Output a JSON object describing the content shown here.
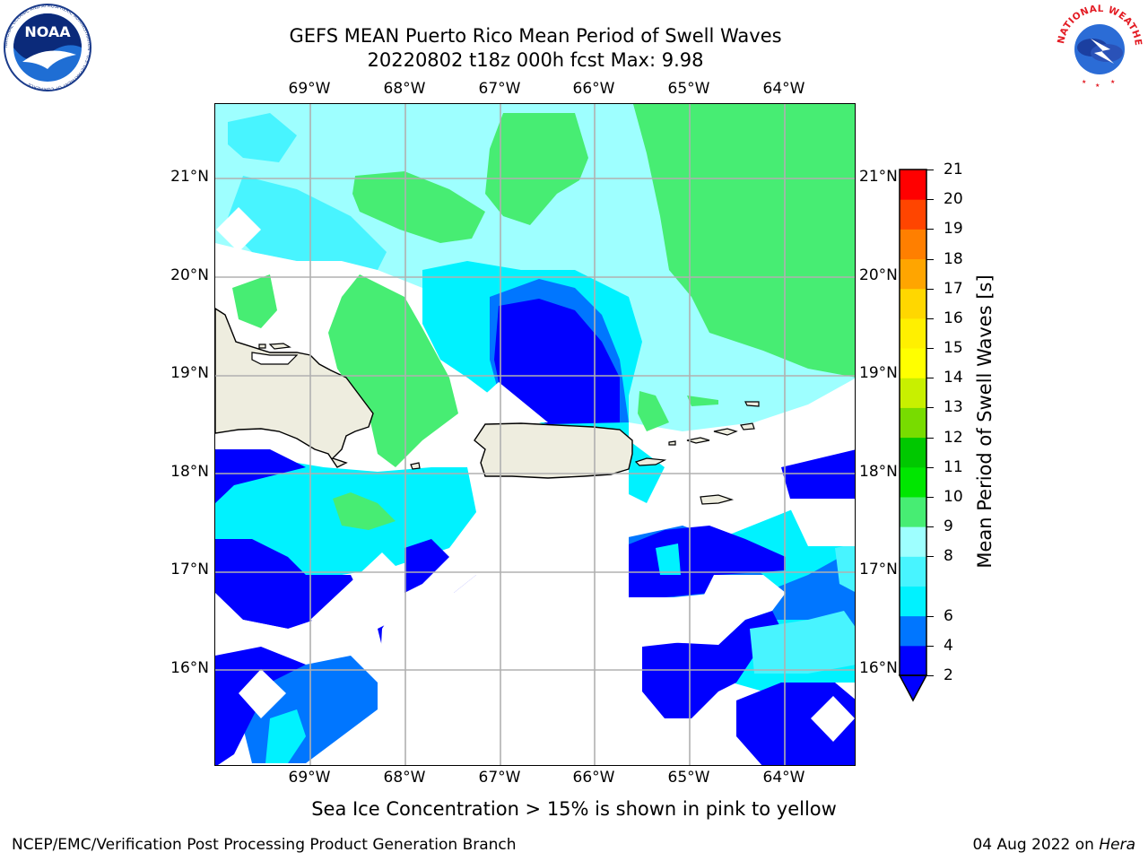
{
  "title": {
    "line1": "GEFS MEAN Puerto Rico Mean Period of Swell Waves",
    "line2": "20220802 t18z 000h fcst   Max: 9.98"
  },
  "logos": {
    "left": {
      "name": "noaa-logo",
      "text": "NOAA",
      "ring_text": "NATIONAL OCEANIC AND ATMOSPHERIC ADMINISTRATION · U.S. DEPARTMENT OF COMMERCE"
    },
    "right": {
      "name": "nws-logo",
      "ring_text": "NATIONAL WEATHER SERVICE"
    }
  },
  "map": {
    "lon_labels": [
      "69°W",
      "68°W",
      "67°W",
      "66°W",
      "65°W",
      "64°W"
    ],
    "lat_labels": [
      "21°N",
      "20°N",
      "19°N",
      "18°N",
      "17°N",
      "16°N"
    ],
    "lon_values": [
      -69,
      -68,
      -67,
      -66,
      -65,
      -64
    ],
    "lat_values": [
      21,
      20,
      19,
      18,
      17,
      16
    ],
    "lon_range": [
      -70.0,
      -63.25
    ],
    "lat_range": [
      15.0,
      21.75
    ],
    "gridlines": true,
    "land_color": "#eeeddf",
    "ocean_missing_color": "#ffffff"
  },
  "colorbar": {
    "label": "Mean Period of Swell Waves [s]",
    "ticks": [
      "21",
      "20",
      "19",
      "18",
      "17",
      "16",
      "15",
      "14",
      "13",
      "12",
      "11",
      "10",
      "9",
      "8",
      "6",
      "4",
      "2"
    ],
    "levels": [
      2,
      4,
      6,
      7,
      8,
      9,
      10,
      11,
      12,
      13,
      14,
      15,
      16,
      17,
      18,
      19,
      20,
      21
    ],
    "colors": [
      "#0000ff",
      "#0076ff",
      "#00f2ff",
      "#48f4ff",
      "#9effff",
      "#47ed73",
      "#00e600",
      "#00c800",
      "#78dc00",
      "#c8f000",
      "#ffff00",
      "#fff000",
      "#ffd700",
      "#ffa500",
      "#ff7f00",
      "#ff4500",
      "#ff0000"
    ],
    "under_color": "#0000ff",
    "extend": "min"
  },
  "footnote": "Sea Ice Concentration > 15% is shown in pink to yellow",
  "credit": "NCEP/EMC/Verification Post Processing Product Generation Branch",
  "datestamp": {
    "date": "04 Aug 2022 on ",
    "host": "Hera"
  }
}
